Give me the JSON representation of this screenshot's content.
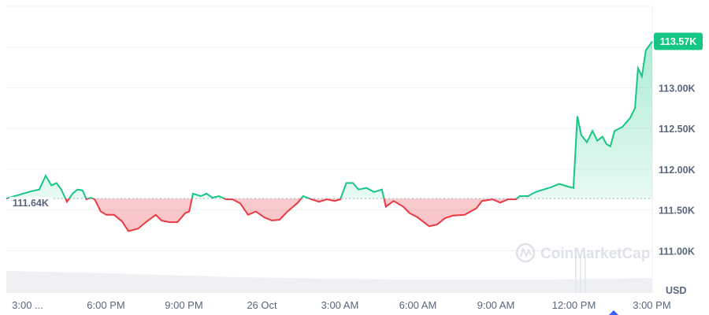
{
  "chart_data": {
    "type": "line",
    "title": "",
    "xlabel": "",
    "ylabel": "",
    "currency_label": "USD",
    "watermark": "CoinMarketCap",
    "baseline": {
      "value": 111.64,
      "label": "111.64K"
    },
    "current": {
      "value": 113.57,
      "label": "113.57K"
    },
    "ylim": [
      110.5,
      114.0
    ],
    "xlim": [
      "25 Oct 14:10",
      "26 Oct 15:01"
    ],
    "grid": true,
    "y_ticks": [
      {
        "value": 113.0,
        "label": "113.00K"
      },
      {
        "value": 112.5,
        "label": "112.50K"
      },
      {
        "value": 112.0,
        "label": "112.00K"
      },
      {
        "value": 111.5,
        "label": "111.50K"
      },
      {
        "value": 111.0,
        "label": "111.00K"
      }
    ],
    "x_ticks": [
      {
        "time": "25 Oct 15:00",
        "label": "3:00 ..."
      },
      {
        "time": "25 Oct 18:00",
        "label": "6:00 PM"
      },
      {
        "time": "25 Oct 21:00",
        "label": "9:00 PM"
      },
      {
        "time": "26 Oct 00:00",
        "label": "26 Oct"
      },
      {
        "time": "26 Oct 03:00",
        "label": "3:00 AM"
      },
      {
        "time": "26 Oct 06:00",
        "label": "6:00 AM"
      },
      {
        "time": "26 Oct 09:00",
        "label": "9:00 AM"
      },
      {
        "time": "26 Oct 12:00",
        "label": "12:00 PM"
      },
      {
        "time": "26 Oct 15:00",
        "label": "3:00 PM"
      }
    ],
    "colors": {
      "up": "#16c784",
      "down": "#ea3943",
      "grid": "#eff2f5",
      "text": "#58667e"
    },
    "series": [
      {
        "x": [
          "25 Oct 14:10",
          "25 Oct 15:08",
          "25 Oct 15:26",
          "25 Oct 15:41",
          "25 Oct 15:54",
          "25 Oct 16:06",
          "25 Oct 16:17",
          "25 Oct 16:30",
          "25 Oct 16:43",
          "25 Oct 16:54",
          "25 Oct 17:06",
          "25 Oct 17:15",
          "25 Oct 17:25",
          "25 Oct 17:34",
          "25 Oct 17:48",
          "25 Oct 18:01",
          "25 Oct 18:19",
          "25 Oct 18:37",
          "25 Oct 18:52",
          "25 Oct 19:14",
          "25 Oct 19:32",
          "25 Oct 19:55",
          "25 Oct 20:08",
          "25 Oct 20:26",
          "25 Oct 20:45",
          "25 Oct 21:03",
          "25 Oct 21:12",
          "25 Oct 21:21",
          "25 Oct 21:39",
          "25 Oct 21:52",
          "25 Oct 22:06",
          "25 Oct 22:21",
          "25 Oct 22:37",
          "25 Oct 22:52",
          "25 Oct 23:10",
          "25 Oct 23:28",
          "25 Oct 23:46",
          "26 Oct 00:05",
          "26 Oct 00:23",
          "26 Oct 00:41",
          "26 Oct 00:59",
          "26 Oct 01:23",
          "26 Oct 01:35",
          "26 Oct 01:54",
          "26 Oct 02:12",
          "26 Oct 02:30",
          "26 Oct 02:48",
          "26 Oct 03:01",
          "26 Oct 03:15",
          "26 Oct 03:30",
          "26 Oct 03:43",
          "26 Oct 04:01",
          "26 Oct 04:19",
          "26 Oct 04:37",
          "26 Oct 04:46",
          "26 Oct 05:04",
          "26 Oct 05:26",
          "26 Oct 05:41",
          "26 Oct 05:59",
          "26 Oct 06:26",
          "26 Oct 06:44",
          "26 Oct 07:03",
          "26 Oct 07:21",
          "26 Oct 07:48",
          "26 Oct 08:15",
          "26 Oct 08:28",
          "26 Oct 08:52",
          "26 Oct 09:10",
          "26 Oct 09:28",
          "26 Oct 09:46",
          "26 Oct 09:55",
          "26 Oct 10:14",
          "26 Oct 10:32",
          "26 Oct 10:50",
          "26 Oct 11:08",
          "26 Oct 11:26",
          "26 Oct 11:44",
          "26 Oct 11:59",
          "26 Oct 12:08",
          "26 Oct 12:17",
          "26 Oct 12:30",
          "26 Oct 12:43",
          "26 Oct 12:54",
          "26 Oct 13:06",
          "26 Oct 13:15",
          "26 Oct 13:24",
          "26 Oct 13:34",
          "26 Oct 13:52",
          "26 Oct 14:10",
          "26 Oct 14:21",
          "26 Oct 14:28",
          "26 Oct 14:37",
          "26 Oct 14:46",
          "26 Oct 15:01"
        ],
        "y": [
          111.64,
          111.73,
          111.75,
          111.92,
          111.8,
          111.83,
          111.75,
          111.6,
          111.7,
          111.75,
          111.74,
          111.63,
          111.65,
          111.63,
          111.48,
          111.44,
          111.44,
          111.36,
          111.24,
          111.27,
          111.35,
          111.44,
          111.37,
          111.35,
          111.35,
          111.46,
          111.48,
          111.7,
          111.67,
          111.7,
          111.65,
          111.67,
          111.63,
          111.63,
          111.58,
          111.44,
          111.48,
          111.41,
          111.37,
          111.38,
          111.48,
          111.59,
          111.67,
          111.63,
          111.6,
          111.63,
          111.61,
          111.63,
          111.83,
          111.83,
          111.75,
          111.77,
          111.72,
          111.75,
          111.54,
          111.61,
          111.54,
          111.46,
          111.41,
          111.3,
          111.32,
          111.4,
          111.43,
          111.44,
          111.52,
          111.61,
          111.63,
          111.59,
          111.63,
          111.63,
          111.67,
          111.67,
          111.72,
          111.75,
          111.78,
          111.82,
          111.79,
          111.77,
          112.65,
          112.42,
          112.33,
          112.47,
          112.35,
          112.4,
          112.31,
          112.28,
          112.47,
          112.52,
          112.63,
          112.75,
          113.24,
          113.14,
          113.46,
          113.57
        ]
      }
    ]
  }
}
